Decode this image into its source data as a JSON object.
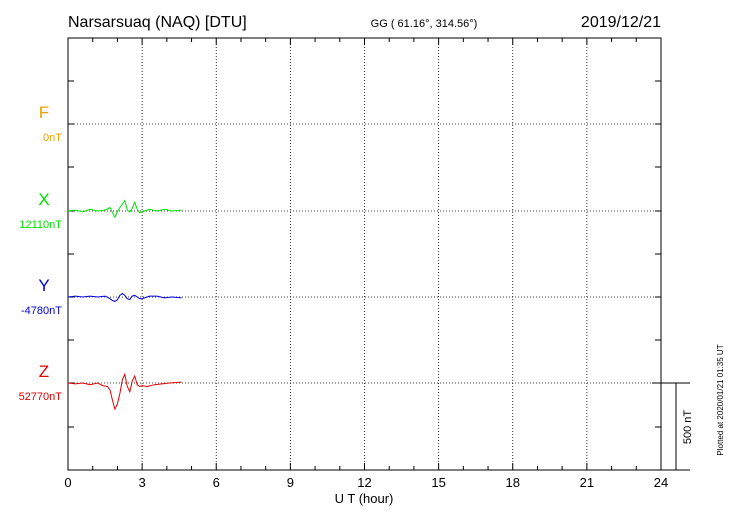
{
  "header": {
    "station": "Narsarsuaq (NAQ)  [DTU]",
    "coords": "GG ( 61.16°, 314.56°)",
    "date": "2019/12/21"
  },
  "footer": {
    "plotted": "Plotted at 2020/01/21 01:35 UT"
  },
  "chart_data": {
    "type": "line",
    "xlabel": "U T (hour)",
    "xlim": [
      0,
      24
    ],
    "xticks": [
      "0",
      "3",
      "6",
      "9",
      "12",
      "15",
      "18",
      "21",
      "24"
    ],
    "grid": true,
    "scale_bar": {
      "label": "500 nT",
      "value_nT": 500
    },
    "colors": {
      "F": "#f0a000",
      "X": "#00e000",
      "Y": "#0000e0",
      "Z": "#e00000"
    },
    "series": [
      {
        "name": "F",
        "baseline": "0nT",
        "x": [],
        "y": []
      },
      {
        "name": "X",
        "baseline": "12110nT",
        "x": [
          0.0,
          0.3,
          0.6,
          0.9,
          1.2,
          1.5,
          1.7,
          1.8,
          1.9,
          2.0,
          2.1,
          2.2,
          2.3,
          2.4,
          2.5,
          2.6,
          2.7,
          2.8,
          2.9,
          3.0,
          3.3,
          3.6,
          3.9,
          4.2,
          4.6
        ],
        "y": [
          0,
          5,
          -5,
          10,
          0,
          5,
          20,
          -10,
          -35,
          -5,
          20,
          40,
          60,
          5,
          -5,
          15,
          50,
          10,
          -10,
          -5,
          10,
          0,
          10,
          0,
          5
        ]
      },
      {
        "name": "Y",
        "baseline": "-4780nT",
        "x": [
          0.0,
          0.3,
          0.6,
          0.9,
          1.2,
          1.5,
          1.7,
          1.8,
          1.9,
          2.0,
          2.1,
          2.2,
          2.3,
          2.4,
          2.5,
          2.6,
          2.7,
          2.8,
          2.9,
          3.0,
          3.3,
          3.6,
          3.9,
          4.2,
          4.6
        ],
        "y": [
          0,
          5,
          0,
          5,
          0,
          5,
          -10,
          -20,
          -25,
          -15,
          10,
          20,
          10,
          -10,
          -15,
          5,
          10,
          0,
          -10,
          -10,
          5,
          5,
          -5,
          0,
          -5
        ]
      },
      {
        "name": "Z",
        "baseline": "52770nT",
        "x": [
          0.0,
          0.3,
          0.6,
          0.9,
          1.2,
          1.4,
          1.6,
          1.7,
          1.8,
          1.9,
          2.0,
          2.1,
          2.2,
          2.3,
          2.4,
          2.5,
          2.6,
          2.7,
          2.8,
          2.9,
          3.0,
          3.2,
          3.5,
          3.8,
          4.1,
          4.6
        ],
        "y": [
          0,
          -5,
          0,
          -10,
          0,
          -15,
          -20,
          -40,
          -100,
          -150,
          -120,
          -60,
          20,
          50,
          -20,
          -50,
          10,
          40,
          -10,
          -20,
          -15,
          -20,
          -10,
          -5,
          0,
          5
        ]
      }
    ]
  }
}
